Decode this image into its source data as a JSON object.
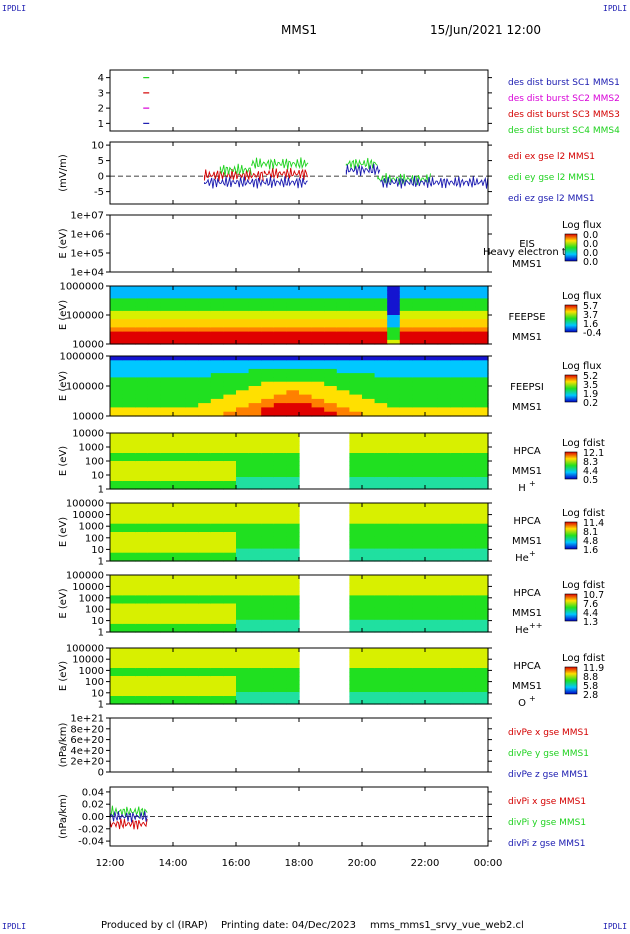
{
  "corner_labels": {
    "tl": "IPDLI",
    "tr": "IPDLI",
    "bl": "IPDLI",
    "br": "IPDLI"
  },
  "header": {
    "spacecraft": "MMS1",
    "datetime": "15/Jun/2021 12:00"
  },
  "footer": {
    "produced": "Produced by cl (IRAP)",
    "printed": "Printing date: 04/Dec/2023",
    "script": "mms_mms1_srvy_vue_web2.cl"
  },
  "colors": {
    "red": "#d40000",
    "green": "#1fd21f",
    "blue": "#1a1ab0",
    "magenta": "#d800d8"
  },
  "chart_data": [
    {
      "type": "scatter",
      "id": "modes",
      "yticks": [
        "1",
        "2",
        "3",
        "4"
      ],
      "ylim": [
        0.5,
        4.5
      ],
      "legend": [
        {
          "label": "des dist burst SC1 MMS1",
          "color": "#1a1ab0"
        },
        {
          "label": "des dist burst SC2 MMS2",
          "color": "#d800d8"
        },
        {
          "label": "des dist burst SC3 MMS3",
          "color": "#d40000"
        },
        {
          "label": "des dist burst SC4 MMS4",
          "color": "#1fd21f"
        }
      ],
      "points": [
        {
          "x": 13.15,
          "y": 4,
          "color": "#1fd21f"
        },
        {
          "x": 13.15,
          "y": 3,
          "color": "#d40000"
        },
        {
          "x": 13.15,
          "y": 2,
          "color": "#d800d8"
        },
        {
          "x": 13.15,
          "y": 1,
          "color": "#1a1ab0"
        }
      ]
    },
    {
      "type": "line",
      "id": "edi",
      "ylabel": "(mV/m)",
      "yticks": [
        "10",
        "5",
        "0",
        "-5"
      ],
      "ylim": [
        -9,
        11
      ],
      "legend": [
        {
          "label": "edi ex gse l2 MMS1",
          "color": "#d40000"
        },
        {
          "label": "edi ey gse l2 MMS1",
          "color": "#1fd21f"
        },
        {
          "label": "edi ez gse l2 MMS1",
          "color": "#1a1ab0"
        }
      ],
      "series": [
        {
          "name": "edi ex gse l2 MMS1",
          "segments": [
            [
              15.0,
              16.9,
              0.3
            ],
            [
              16.9,
              18.3,
              0.8
            ]
          ]
        },
        {
          "name": "edi ey gse l2 MMS1",
          "segments": [
            [
              15.5,
              16.5,
              2.0
            ],
            [
              16.5,
              18.3,
              4.0
            ],
            [
              19.5,
              20.5,
              4.0
            ],
            [
              20.5,
              22.2,
              -1.0
            ]
          ]
        },
        {
          "name": "edi ez gse l2 MMS1",
          "segments": [
            [
              15.0,
              18.3,
              -2.0
            ],
            [
              19.5,
              20.6,
              2.0
            ],
            [
              20.6,
              24.0,
              -2.0
            ]
          ]
        }
      ]
    },
    {
      "type": "heatmap",
      "id": "eis",
      "ylabel": "E (eV)",
      "yticks": [
        "1e+07",
        "1e+06",
        "1e+05",
        "1e+04"
      ],
      "labels": [
        "EIS",
        "MMS1"
      ],
      "overlay": "Heavy electron tc",
      "cbar_title": "Log flux",
      "cbar_ticks": [
        "0.0",
        "0.0",
        "0.0",
        "0.0"
      ]
    },
    {
      "type": "heatmap",
      "id": "feepse",
      "ylabel": "E (eV)",
      "yticks": [
        "1000000",
        "100000",
        "10000"
      ],
      "labels": [
        "FEEPSE",
        "MMS1"
      ],
      "cbar_title": "Log flux",
      "cbar_ticks": [
        "5.7",
        "3.7",
        "1.6",
        "-0.4"
      ]
    },
    {
      "type": "heatmap",
      "id": "feepsi",
      "ylabel": "E (eV)",
      "yticks": [
        "1000000",
        "100000",
        "10000"
      ],
      "labels": [
        "FEEPSI",
        "MMS1"
      ],
      "cbar_title": "Log flux",
      "cbar_ticks": [
        "5.2",
        "3.5",
        "1.9",
        "0.2"
      ]
    },
    {
      "type": "heatmap",
      "id": "hpca_h",
      "ylabel": "E (eV)",
      "yticks": [
        "10000",
        "1000",
        "100",
        "10",
        "1"
      ],
      "labels": [
        "HPCA",
        "MMS1"
      ],
      "species": "H",
      "charge": "+",
      "cbar_title": "Log fdist",
      "cbar_ticks": [
        "12.1",
        "8.3",
        "4.4",
        "0.5"
      ]
    },
    {
      "type": "heatmap",
      "id": "hpca_he1",
      "ylabel": "E (eV)",
      "yticks": [
        "100000",
        "10000",
        "1000",
        "100",
        "10",
        "1"
      ],
      "labels": [
        "HPCA",
        "MMS1"
      ],
      "species": "He",
      "charge": "+",
      "cbar_title": "Log fdist",
      "cbar_ticks": [
        "11.4",
        "8.1",
        "4.8",
        "1.6"
      ]
    },
    {
      "type": "heatmap",
      "id": "hpca_he2",
      "ylabel": "E (eV)",
      "yticks": [
        "100000",
        "10000",
        "1000",
        "100",
        "10",
        "1"
      ],
      "labels": [
        "HPCA",
        "MMS1"
      ],
      "species": "He",
      "charge": "++",
      "cbar_title": "Log fdist",
      "cbar_ticks": [
        "10.7",
        "7.6",
        "4.4",
        "1.3"
      ]
    },
    {
      "type": "heatmap",
      "id": "hpca_o",
      "ylabel": "E (eV)",
      "yticks": [
        "100000",
        "10000",
        "1000",
        "100",
        "10",
        "1"
      ],
      "labels": [
        "HPCA",
        "MMS1"
      ],
      "species": "O",
      "charge": "+",
      "cbar_title": "Log fdist",
      "cbar_ticks": [
        "11.9",
        "8.8",
        "5.8",
        "2.8"
      ]
    },
    {
      "type": "line",
      "id": "divpe",
      "ylabel": "(nPa/km)",
      "yticks": [
        "1e+21",
        "8e+20",
        "6e+20",
        "4e+20",
        "2e+20",
        "0"
      ],
      "legend": [
        {
          "label": "divPe x gse MMS1",
          "color": "#d40000"
        },
        {
          "label": "divPe y gse MMS1",
          "color": "#1fd21f"
        },
        {
          "label": "divPe z gse MMS1",
          "color": "#1a1ab0"
        }
      ],
      "series": []
    },
    {
      "type": "line",
      "id": "divpi",
      "ylabel": "(nPa/km)",
      "yticks": [
        "0.04",
        "0.02",
        "0.00",
        "-0.02",
        "-0.04"
      ],
      "ylim": [
        -0.048,
        0.048
      ],
      "legend": [
        {
          "label": "divPi x gse MMS1",
          "color": "#d40000"
        },
        {
          "label": "divPi y gse MMS1",
          "color": "#1fd21f"
        },
        {
          "label": "divPi z gse MMS1",
          "color": "#1a1ab0"
        }
      ],
      "series": [
        {
          "name": "divPi x gse MMS1",
          "segments": [
            [
              12.0,
              13.2,
              -0.012
            ]
          ]
        },
        {
          "name": "divPi y gse MMS1",
          "segments": [
            [
              12.0,
              13.2,
              0.008
            ]
          ]
        },
        {
          "name": "divPi z gse MMS1",
          "segments": [
            [
              12.0,
              13.2,
              0.0
            ]
          ]
        }
      ]
    }
  ],
  "xaxis": {
    "ticks": [
      "12:00",
      "14:00",
      "16:00",
      "18:00",
      "20:00",
      "22:00",
      "00:00"
    ],
    "range": [
      12,
      24
    ]
  }
}
